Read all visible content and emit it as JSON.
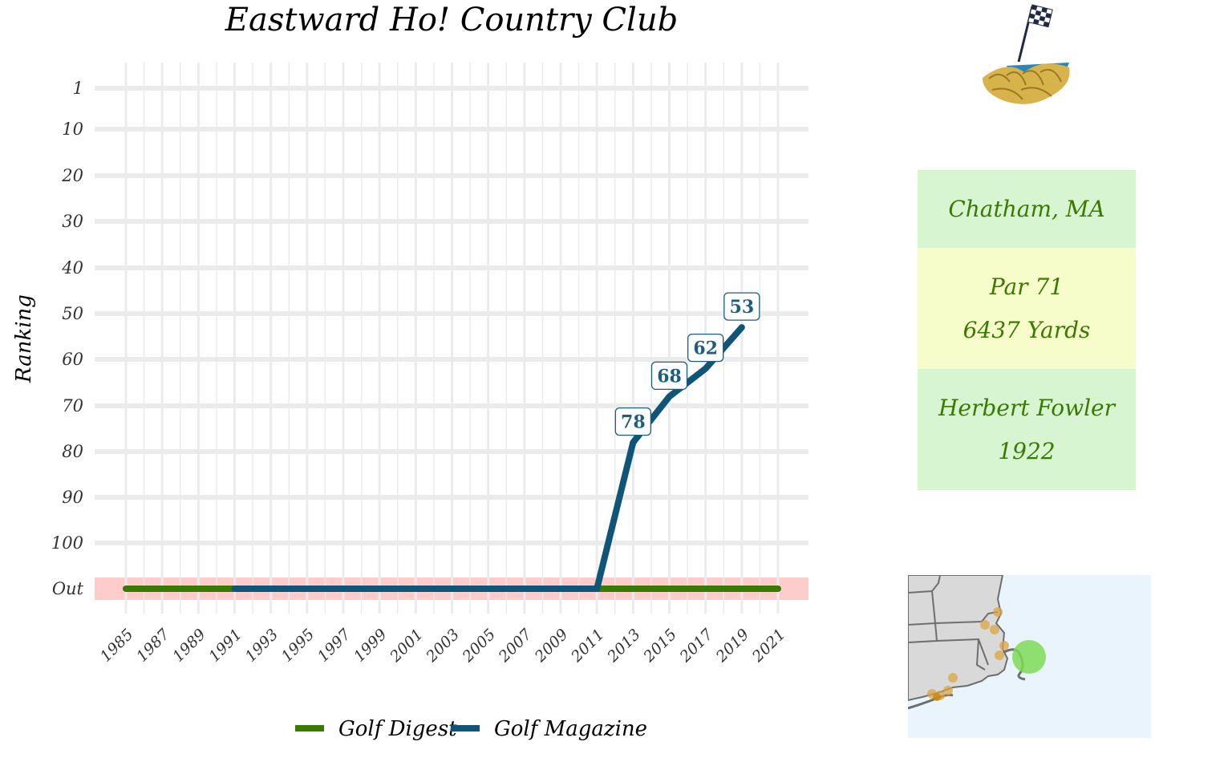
{
  "title": "Eastward Ho! Country Club",
  "info": {
    "location": "Chatham, MA",
    "par": "Par 71",
    "yards": "6437 Yards",
    "architect": "Herbert Fowler",
    "year": "1922"
  },
  "colors": {
    "golf_digest": "#3a7a00",
    "golf_magazine": "#0f5578",
    "out_band": "#ffcccc",
    "card_green": "#d6f5d0",
    "card_yellow": "#f7fdca"
  },
  "chart_data": {
    "type": "line",
    "title": "Eastward Ho! Country Club",
    "xlabel": "",
    "ylabel": "Ranking",
    "x_ticks": [
      1985,
      1987,
      1989,
      1991,
      1993,
      1995,
      1997,
      1999,
      2001,
      2003,
      2005,
      2007,
      2009,
      2011,
      2013,
      2015,
      2017,
      2019,
      2021
    ],
    "y_ticks": [
      "1",
      "10",
      "20",
      "30",
      "40",
      "50",
      "60",
      "70",
      "80",
      "90",
      "100",
      "Out"
    ],
    "y_tick_values": [
      1,
      10,
      20,
      30,
      40,
      50,
      60,
      70,
      80,
      90,
      100,
      111
    ],
    "out_value": 111,
    "xlim": [
      1985,
      2021
    ],
    "ylim": [
      1,
      111
    ],
    "y_reversed": true,
    "grid": true,
    "legend_position": "bottom",
    "series": [
      {
        "name": "Golf Digest",
        "x": [
          1985,
          2021
        ],
        "y": [
          111,
          111
        ]
      },
      {
        "name": "Golf Magazine",
        "x": [
          1991,
          2011,
          2013,
          2015,
          2017,
          2019
        ],
        "y": [
          111,
          111,
          78,
          68,
          62,
          53
        ],
        "labeled": [
          false,
          false,
          true,
          true,
          true,
          true
        ]
      }
    ]
  },
  "legend": {
    "items": [
      {
        "label": "Golf Digest"
      },
      {
        "label": "Golf Magazine"
      }
    ]
  }
}
